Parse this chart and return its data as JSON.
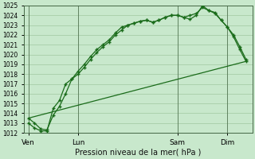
{
  "bg_color": "#c8e8cc",
  "grid_color": "#a0c8a0",
  "line_color": "#1a6b1a",
  "title": "Pression niveau de la mer( hPa )",
  "ylim": [
    1012,
    1025
  ],
  "yticks": [
    1012,
    1013,
    1014,
    1015,
    1016,
    1017,
    1018,
    1019,
    1020,
    1021,
    1022,
    1023,
    1024,
    1025
  ],
  "xtick_labels": [
    "Ven",
    "Lun",
    "Sam",
    "Dim"
  ],
  "xtick_positions": [
    0,
    24,
    72,
    96
  ],
  "xlim": [
    -2,
    108
  ],
  "vline_positions": [
    0,
    24,
    72,
    96
  ],
  "line1_x": [
    0,
    3,
    6,
    9,
    12,
    15,
    18,
    21,
    24,
    27,
    30,
    33,
    36,
    39,
    42,
    45,
    48,
    51,
    54,
    57,
    60,
    63,
    66,
    69,
    72,
    75,
    78,
    81,
    84,
    87,
    90,
    93,
    96,
    99,
    102,
    105
  ],
  "line1_y": [
    1013.5,
    1013.0,
    1012.4,
    1012.3,
    1013.8,
    1014.7,
    1016.0,
    1017.5,
    1018.0,
    1018.7,
    1019.5,
    1020.2,
    1020.8,
    1021.3,
    1022.0,
    1022.5,
    1023.0,
    1023.2,
    1023.4,
    1023.5,
    1023.3,
    1023.5,
    1023.8,
    1024.0,
    1024.0,
    1023.8,
    1023.6,
    1024.0,
    1025.0,
    1024.5,
    1024.3,
    1023.5,
    1022.8,
    1022.0,
    1020.8,
    1019.5
  ],
  "line2_x": [
    0,
    3,
    6,
    9,
    12,
    15,
    18,
    21,
    24,
    27,
    30,
    33,
    36,
    39,
    42,
    45,
    48,
    51,
    54,
    57,
    60,
    63,
    66,
    69,
    72,
    75,
    78,
    81,
    84,
    87,
    90,
    93,
    96,
    99,
    102,
    105
  ],
  "line2_y": [
    1013.0,
    1012.5,
    1012.2,
    1012.2,
    1014.5,
    1015.3,
    1017.0,
    1017.5,
    1018.3,
    1019.0,
    1019.8,
    1020.5,
    1021.0,
    1021.5,
    1022.2,
    1022.8,
    1023.0,
    1023.2,
    1023.4,
    1023.5,
    1023.3,
    1023.5,
    1023.8,
    1024.0,
    1024.0,
    1023.8,
    1024.0,
    1024.2,
    1024.8,
    1024.5,
    1024.2,
    1023.5,
    1022.8,
    1021.8,
    1020.5,
    1019.3
  ],
  "line3_x": [
    0,
    105
  ],
  "line3_y": [
    1013.5,
    1019.3
  ],
  "marker_style": "+"
}
